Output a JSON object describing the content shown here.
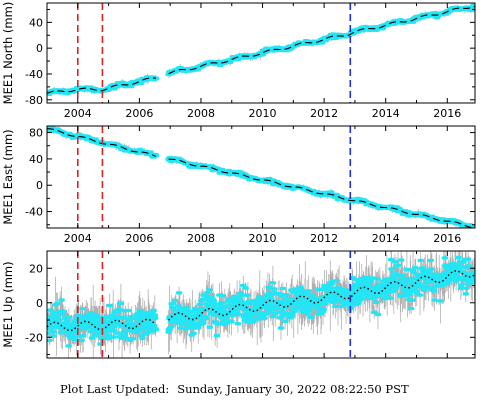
{
  "footer": {
    "label": "Plot Last Updated:",
    "timestamp": "Sunday, January 30, 2022 08:22:50 PST"
  },
  "colors": {
    "data_cyan": "#22e5f5",
    "error_gray": "#b0b0b0",
    "model_black": "#000000",
    "red_line": "#e02020",
    "blue_line": "#1f2fd6"
  },
  "chart_data": [
    {
      "type": "scatter",
      "ylabel": "MEE1 North (mm)",
      "xlim": [
        2003.0,
        2016.9
      ],
      "ylim": [
        -85,
        70
      ],
      "yticks": [
        -80,
        -40,
        0,
        40
      ],
      "xticks": [
        2004,
        2006,
        2008,
        2010,
        2012,
        2014,
        2016
      ],
      "xtick_labels": [
        "2004",
        "2006",
        "2008",
        "2010",
        "2012",
        "2014",
        "2016"
      ],
      "show_xtick_labels": true,
      "red_lines": [
        2004.0,
        2004.8
      ],
      "blue_lines": [
        2012.85
      ],
      "gaps": [
        [
          2006.55,
          2006.95
        ]
      ],
      "trend": {
        "anchors": [
          [
            2003.0,
            -70
          ],
          [
            2003.95,
            -64
          ],
          [
            2004.8,
            -64
          ],
          [
            2006.55,
            -46
          ],
          [
            2006.95,
            -39
          ],
          [
            2012.8,
            22
          ],
          [
            2012.9,
            24
          ],
          [
            2016.9,
            66
          ]
        ]
      },
      "seasonal_amp": 2.0,
      "scatter_sd": 1.4,
      "error_sd": 2.0
    },
    {
      "type": "scatter",
      "ylabel": "MEE1 East (mm)",
      "xlim": [
        2003.0,
        2016.9
      ],
      "ylim": [
        -65,
        90
      ],
      "yticks": [
        -40,
        0,
        40,
        80
      ],
      "xticks": [
        2004,
        2006,
        2008,
        2010,
        2012,
        2014,
        2016
      ],
      "xtick_labels": [
        "2004",
        "2006",
        "2008",
        "2010",
        "2012",
        "2014",
        "2016"
      ],
      "show_xtick_labels": true,
      "red_lines": [
        2004.0,
        2004.8
      ],
      "blue_lines": [
        2012.85
      ],
      "gaps": [
        [
          2006.55,
          2006.95
        ]
      ],
      "trend": {
        "anchors": [
          [
            2003.0,
            86
          ],
          [
            2004.0,
            74
          ],
          [
            2006.55,
            44
          ],
          [
            2006.95,
            40
          ],
          [
            2012.85,
            -22
          ],
          [
            2016.9,
            -64
          ]
        ]
      },
      "seasonal_amp": 1.5,
      "scatter_sd": 1.3,
      "error_sd": 2.0
    },
    {
      "type": "scatter",
      "ylabel": "MEE1 Up (mm)",
      "xlim": [
        2003.0,
        2016.9
      ],
      "ylim": [
        -32,
        30
      ],
      "yticks": [
        -20,
        0,
        20
      ],
      "xticks": [
        2004,
        2006,
        2008,
        2010,
        2012,
        2014,
        2016
      ],
      "xtick_labels": [
        "2004",
        "2006",
        "2008",
        "2010",
        "2012",
        "2014",
        "2016"
      ],
      "show_xtick_labels": false,
      "red_lines": [
        2004.0,
        2004.8
      ],
      "blue_lines": [
        2012.85
      ],
      "gaps": [
        [
          2006.55,
          2006.95
        ]
      ],
      "trend": {
        "anchors": [
          [
            2003.0,
            -14
          ],
          [
            2006.5,
            -12
          ],
          [
            2007.0,
            -9
          ],
          [
            2012.8,
            5
          ],
          [
            2016.9,
            18
          ]
        ]
      },
      "seasonal_amp": 2.5,
      "scatter_sd": 4.5,
      "error_sd": 5.5
    }
  ]
}
